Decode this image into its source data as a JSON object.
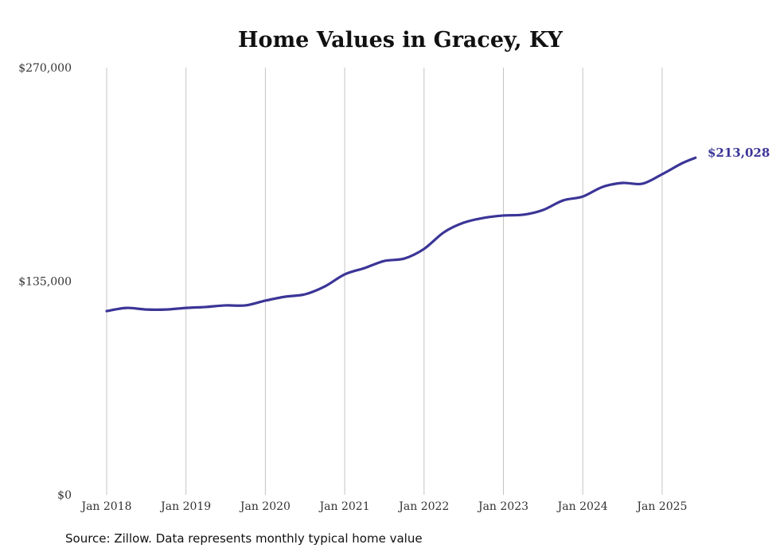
{
  "chart_data": {
    "type": "line",
    "title": "Home Values in Gracey, KY",
    "xlabel": "",
    "ylabel": "",
    "ylim": [
      0,
      270000
    ],
    "y_ticks": [
      "$0",
      "$135,000",
      "$270,000"
    ],
    "y_tick_values": [
      0,
      135000,
      270000
    ],
    "x_ticks": [
      "Jan 2018",
      "Jan 2019",
      "Jan 2020",
      "Jan 2021",
      "Jan 2022",
      "Jan 2023",
      "Jan 2024",
      "Jan 2025"
    ],
    "x_tick_values": [
      2018,
      2019,
      2020,
      2021,
      2022,
      2023,
      2024,
      2025
    ],
    "grid": "vertical",
    "series": [
      {
        "name": "Typical home value",
        "color": "#3b3597",
        "x": [
          2018.0,
          2018.25,
          2018.5,
          2018.75,
          2019.0,
          2019.25,
          2019.5,
          2019.75,
          2020.0,
          2020.25,
          2020.5,
          2020.75,
          2021.0,
          2021.25,
          2021.5,
          2021.75,
          2022.0,
          2022.25,
          2022.5,
          2022.75,
          2023.0,
          2023.25,
          2023.5,
          2023.75,
          2024.0,
          2024.25,
          2024.5,
          2024.75,
          2025.0,
          2025.25,
          2025.42
        ],
        "values": [
          116100,
          118100,
          117100,
          117100,
          118100,
          118700,
          119700,
          119700,
          122700,
          125200,
          126700,
          131700,
          139300,
          143300,
          147800,
          149300,
          155400,
          165900,
          172000,
          175000,
          176500,
          177000,
          180000,
          186000,
          188500,
          194600,
          197100,
          196600,
          202600,
          209500,
          213028
        ]
      }
    ],
    "end_label": "$213,028",
    "source": "Source: Zillow. Data represents monthly typical home value"
  }
}
